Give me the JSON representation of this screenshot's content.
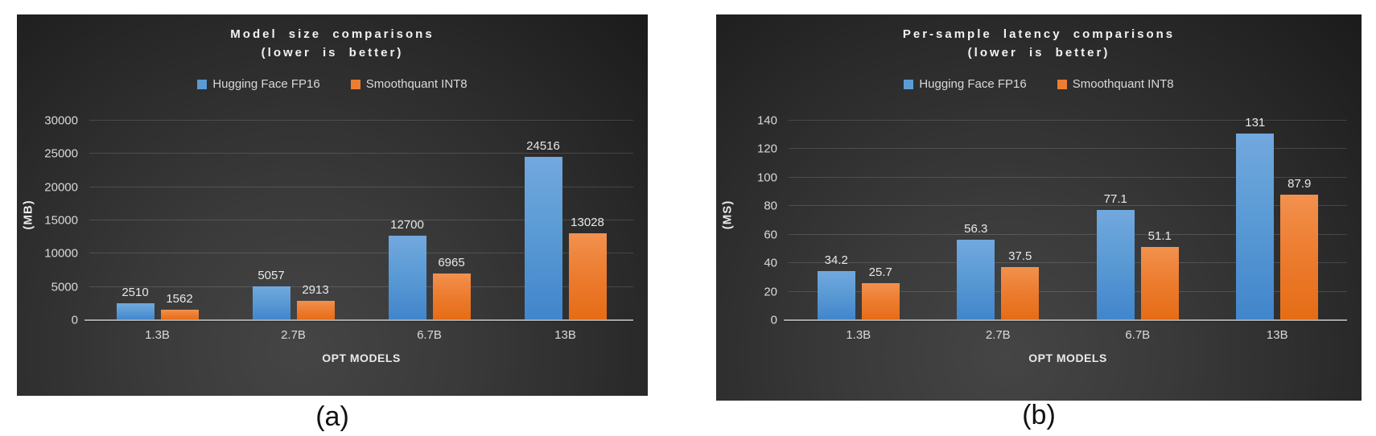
{
  "colors": {
    "series_blue": "#5b9bd5",
    "series_orange": "#ed7d31",
    "panel_background_dark": "#1b1b1b",
    "panel_background_light": "#454545",
    "text_light": "#d9d9d9",
    "gridline": "rgba(255,255,255,0.14)",
    "axis_line": "#a6a6a6",
    "caption_text": "#111111"
  },
  "chart_data": [
    {
      "id": "model-size",
      "type": "bar",
      "title_line1": "Model size comparisons",
      "title_line2": "(lower is better)",
      "categories": [
        "1.3B",
        "2.7B",
        "6.7B",
        "13B"
      ],
      "series": [
        {
          "name": "Hugging Face FP16",
          "color": "#5b9bd5",
          "values": [
            2510,
            5057,
            12700,
            24516
          ]
        },
        {
          "name": "Smoothquant INT8",
          "color": "#ed7d31",
          "values": [
            1562,
            2913,
            6965,
            13028
          ]
        }
      ],
      "ylabel": "(MB)",
      "xlabel": "OPT MODELS",
      "yticks": [
        0,
        5000,
        10000,
        15000,
        20000,
        25000,
        30000
      ],
      "ylim": [
        0,
        30000
      ],
      "ymax": 30000,
      "grid": "on",
      "legend_position": "top",
      "caption": "(a)"
    },
    {
      "id": "per-sample-latency",
      "type": "bar",
      "title_line1": "Per-sample latency comparisons",
      "title_line2": "(lower is better)",
      "categories": [
        "1.3B",
        "2.7B",
        "6.7B",
        "13B"
      ],
      "series": [
        {
          "name": "Hugging Face FP16",
          "color": "#5b9bd5",
          "values": [
            34.2,
            56.3,
            77.1,
            131
          ]
        },
        {
          "name": "Smoothquant INT8",
          "color": "#ed7d31",
          "values": [
            25.7,
            37.5,
            51.1,
            87.9
          ]
        }
      ],
      "ylabel": "(MS)",
      "xlabel": "OPT MODELS",
      "yticks": [
        0,
        20,
        40,
        60,
        80,
        100,
        120,
        140
      ],
      "ylim": [
        0,
        140
      ],
      "ymax": 140,
      "grid": "on",
      "legend_position": "top",
      "caption": "(b)"
    }
  ]
}
